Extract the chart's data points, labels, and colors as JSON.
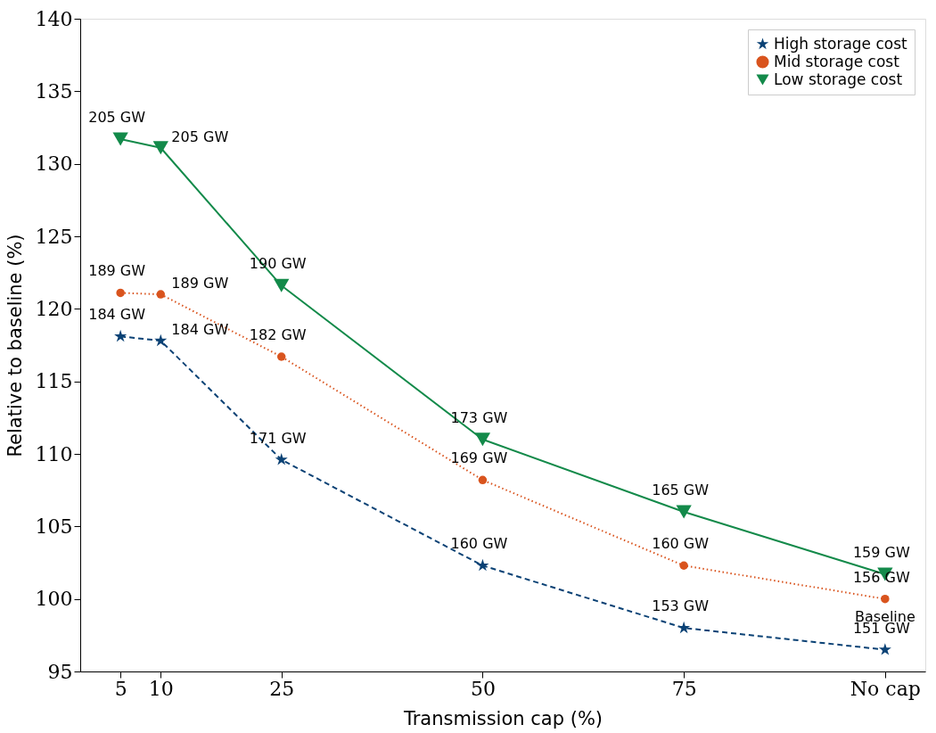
{
  "chart_data": {
    "type": "line",
    "xlabel": "Transmission cap (%)",
    "ylabel": "Relative to baseline (%)",
    "x": [
      5,
      10,
      25,
      50,
      75,
      100
    ],
    "xlim": [
      0,
      105
    ],
    "xticks": [
      5,
      10,
      25,
      50,
      75,
      {
        "value": 100,
        "label": "No cap"
      }
    ],
    "ylim": [
      95,
      140
    ],
    "yticks": [
      95,
      100,
      105,
      110,
      115,
      120,
      125,
      130,
      135,
      140
    ],
    "grid": false,
    "legend": "top right",
    "series": [
      {
        "name": "High storage cost",
        "color": "#0b4275",
        "marker": "star",
        "line_style": "dashed",
        "values": [
          118.1,
          117.8,
          109.6,
          102.3,
          98.0,
          96.5
        ]
      },
      {
        "name": "Mid storage cost",
        "color": "#d9541e",
        "marker": "circle",
        "line_style": "dotted",
        "values": [
          121.1,
          121.0,
          116.7,
          108.2,
          102.3,
          100.0
        ]
      },
      {
        "name": "Low storage cost",
        "color": "#138a4a",
        "marker": "triangle-down",
        "line_style": "solid",
        "values": [
          131.7,
          131.1,
          121.6,
          111.0,
          106.0,
          101.7
        ]
      }
    ],
    "annotations": [
      {
        "text": "184 GW",
        "x": 5,
        "y": 118.1
      },
      {
        "text": "184 GW",
        "x": 10,
        "y": 117.8
      },
      {
        "text": "171 GW",
        "x": 25,
        "y": 109.6
      },
      {
        "text": "160 GW",
        "x": 50,
        "y": 102.3
      },
      {
        "text": "153 GW",
        "x": 75,
        "y": 98.0
      },
      {
        "text": "151 GW",
        "x": 100,
        "y": 96.5
      },
      {
        "text": "189 GW",
        "x": 5,
        "y": 121.1
      },
      {
        "text": "189 GW",
        "x": 10,
        "y": 121.0
      },
      {
        "text": "182 GW",
        "x": 25,
        "y": 116.7
      },
      {
        "text": "169 GW",
        "x": 50,
        "y": 108.2
      },
      {
        "text": "160 GW",
        "x": 75,
        "y": 102.3
      },
      {
        "text": "156 GW",
        "x": 100,
        "y": 100.0
      },
      {
        "text": "Baseline",
        "x": 100,
        "y": 100.0
      },
      {
        "text": "205 GW",
        "x": 5,
        "y": 131.7
      },
      {
        "text": "205 GW",
        "x": 10,
        "y": 131.1
      },
      {
        "text": "190 GW",
        "x": 25,
        "y": 121.6
      },
      {
        "text": "173 GW",
        "x": 50,
        "y": 111.0
      },
      {
        "text": "165 GW",
        "x": 75,
        "y": 106.0
      },
      {
        "text": "159 GW",
        "x": 100,
        "y": 101.7
      }
    ]
  }
}
